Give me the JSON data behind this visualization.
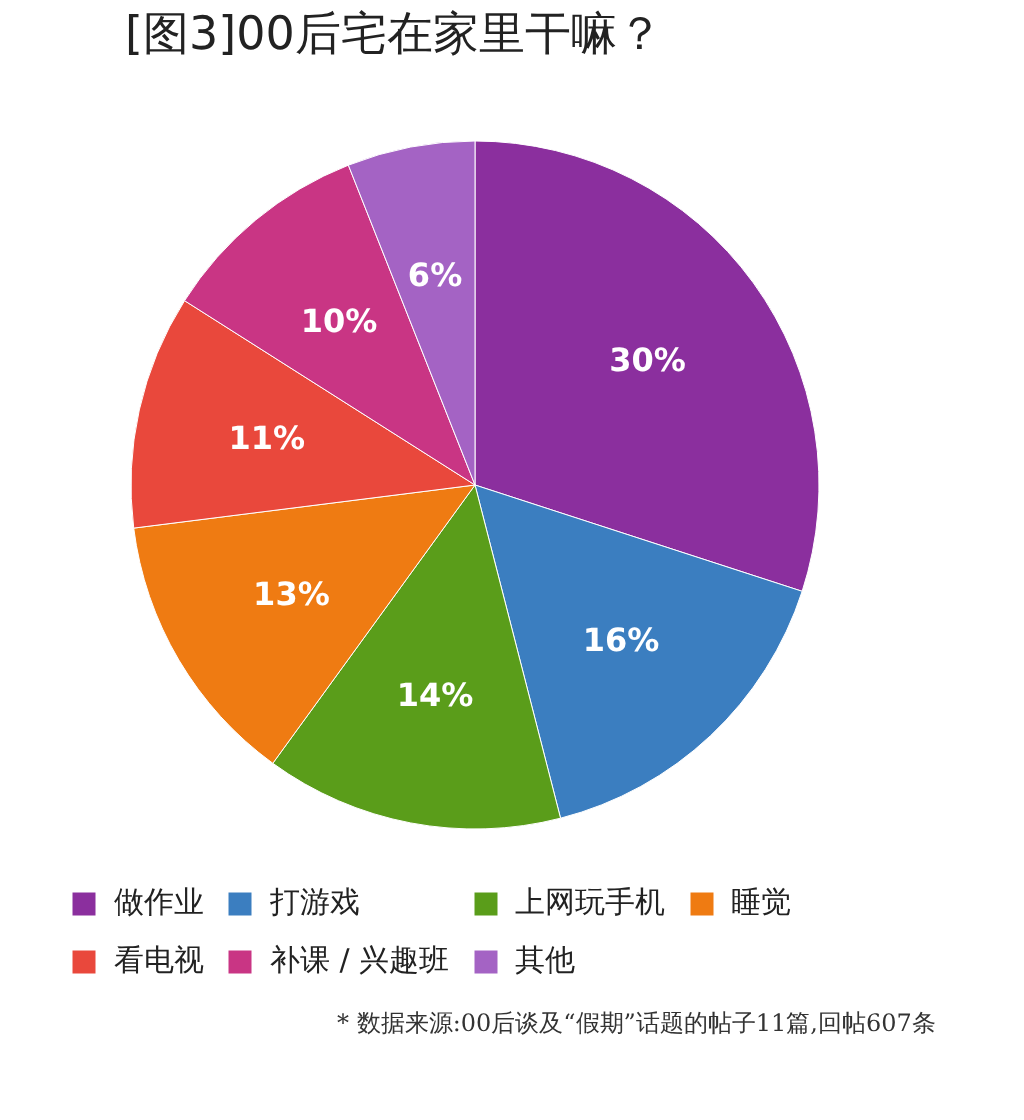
{
  "chart_data": {
    "type": "pie",
    "title": "[图3]00后宅在家里干嘛？",
    "categories": [
      "做作业",
      "打游戏",
      "上网玩手机",
      "睡觉",
      "看电视",
      "补课 / 兴趣班",
      "其他"
    ],
    "values": [
      30,
      16,
      14,
      13,
      11,
      10,
      6
    ],
    "value_labels": [
      "30%",
      "16%",
      "14%",
      "13%",
      "11%",
      "10%",
      "6%"
    ],
    "colors": [
      "#8b2f9e",
      "#3b7ec0",
      "#5a9d1a",
      "#ef7b12",
      "#e9483c",
      "#c93584",
      "#a463c4"
    ],
    "legend": "bottom",
    "annotations": [
      "* 数据来源:00后谈及“假期”话题的帖子11篇,回帖607条"
    ]
  }
}
